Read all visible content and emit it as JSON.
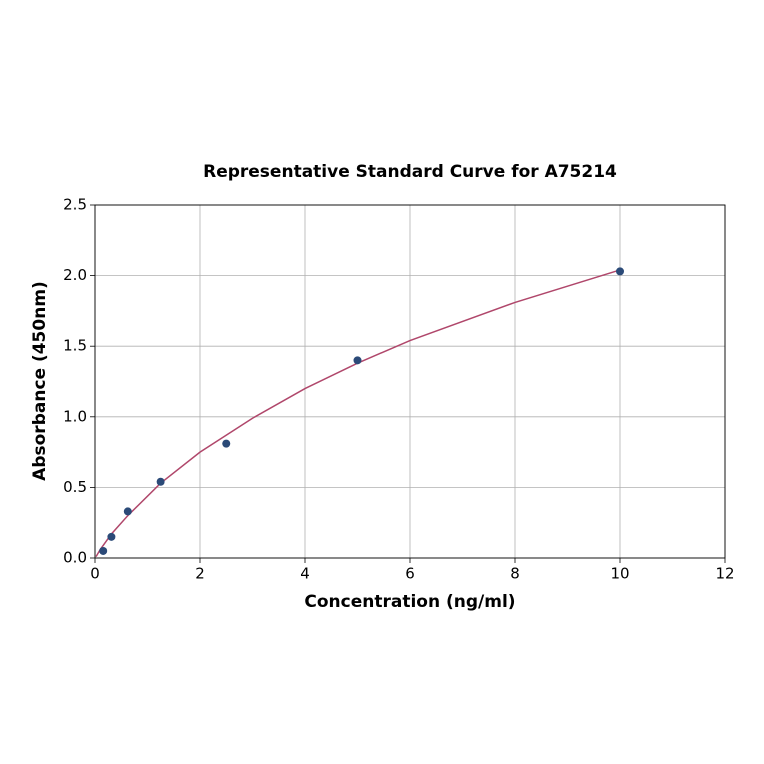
{
  "chart_data": {
    "type": "scatter",
    "title": "Representative Standard Curve for A75214",
    "x_label": "Concentration (ng/ml)",
    "y_label": "Absorbance (450nm)",
    "xlim": [
      0,
      12
    ],
    "ylim": [
      0,
      2.5
    ],
    "xticks": [
      0,
      2,
      4,
      6,
      8,
      10,
      12
    ],
    "yticks": [
      {
        "value": 0,
        "label": "0.0"
      },
      0.5,
      {
        "value": 1,
        "label": "1.0"
      },
      1.5,
      {
        "value": 2,
        "label": "2.0"
      },
      2.5
    ],
    "grid": true,
    "series": [
      {
        "kind": "points",
        "color": "#2b4a78",
        "x": [
          0.156,
          0.3125,
          0.625,
          1.25,
          2.5,
          5,
          10
        ],
        "values": [
          0.05,
          0.15,
          0.33,
          0.54,
          0.81,
          1.4,
          2.03
        ]
      },
      {
        "kind": "line",
        "color": "#b0476b",
        "x": [
          0.02,
          0.1,
          0.3125,
          0.625,
          1.25,
          2,
          3,
          4,
          5,
          6,
          8,
          10
        ],
        "values": [
          0.01,
          0.06,
          0.17,
          0.3,
          0.53,
          0.75,
          0.99,
          1.2,
          1.38,
          1.54,
          1.81,
          2.04
        ]
      }
    ]
  }
}
